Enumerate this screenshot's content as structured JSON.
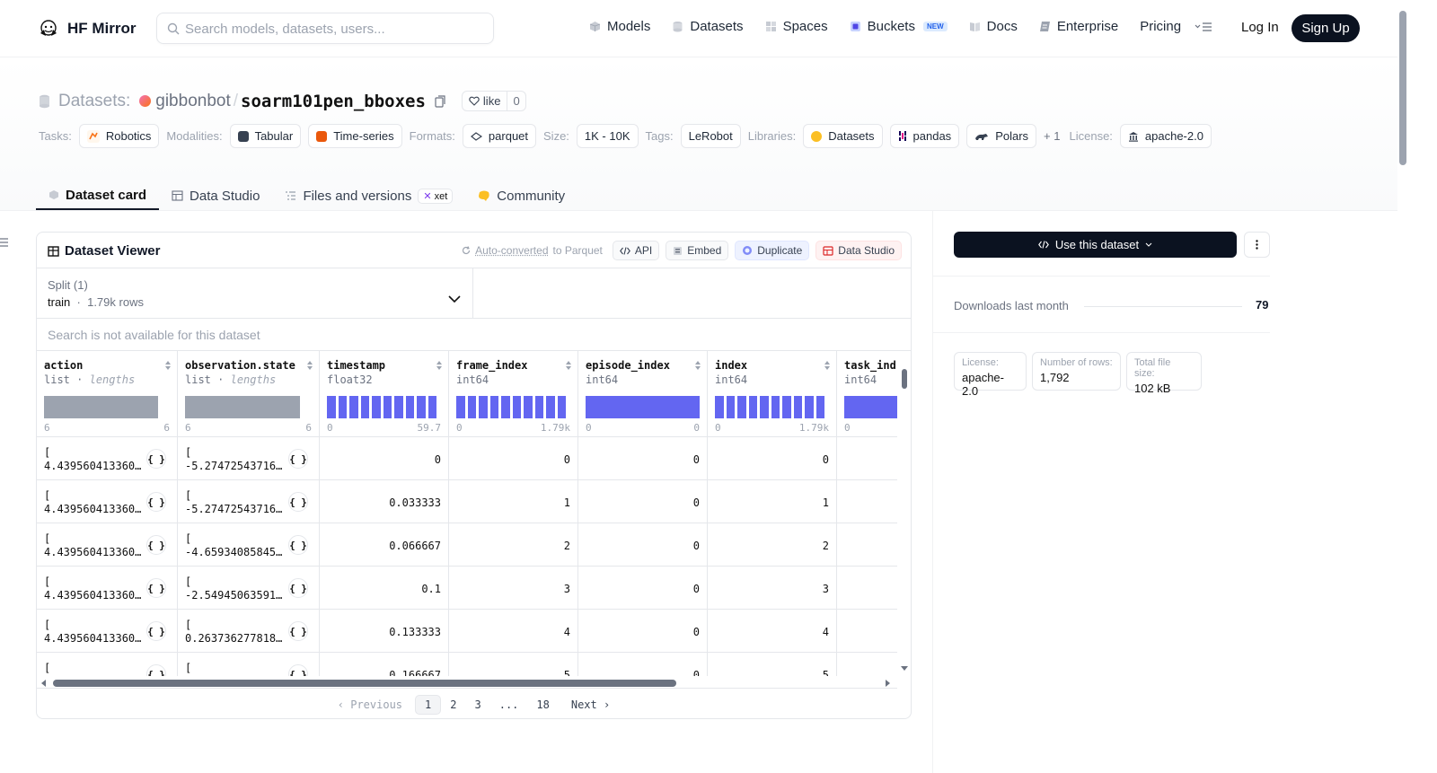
{
  "nav": {
    "brand": "HF Mirror",
    "search_placeholder": "Search models, datasets, users...",
    "links": [
      {
        "label": "Models",
        "icon": "cube-icon"
      },
      {
        "label": "Datasets",
        "icon": "database-icon"
      },
      {
        "label": "Spaces",
        "icon": "grid-icon"
      },
      {
        "label": "Buckets",
        "icon": "bucket-icon",
        "badge": "NEW"
      },
      {
        "label": "Docs",
        "icon": "book-icon"
      },
      {
        "label": "Enterprise",
        "icon": "enterprise-icon"
      },
      {
        "label": "Pricing"
      }
    ],
    "login": "Log In",
    "signup": "Sign Up"
  },
  "header": {
    "section": "Datasets:",
    "owner": "gibbonbot",
    "separator": "/",
    "repo": "soarm101pen_bboxes",
    "like_label": "like",
    "like_count": "0",
    "tags": {
      "tasks_label": "Tasks:",
      "tasks": [
        "Robotics"
      ],
      "modalities_label": "Modalities:",
      "modalities": [
        "Tabular",
        "Time-series"
      ],
      "formats_label": "Formats:",
      "formats": [
        "parquet"
      ],
      "size_label": "Size:",
      "size": "1K - 10K",
      "tags_label": "Tags:",
      "tags": [
        "LeRobot"
      ],
      "libraries_label": "Libraries:",
      "libraries": [
        "Datasets",
        "pandas",
        "Polars"
      ],
      "more": "+ 1",
      "license_label": "License:",
      "license": "apache-2.0"
    }
  },
  "tabs": [
    {
      "label": "Dataset card",
      "active": true
    },
    {
      "label": "Data Studio"
    },
    {
      "label": "Files and versions",
      "badge": "xet"
    },
    {
      "label": "Community"
    }
  ],
  "viewer": {
    "title": "Dataset Viewer",
    "auto_converted": "Auto-converted",
    "to_parquet": "to Parquet",
    "buttons": [
      "API",
      "Embed",
      "Duplicate",
      "Data Studio"
    ],
    "split_label": "Split (1)",
    "split_name": "train",
    "split_rows": "1.79k rows",
    "search_disabled": "Search is not available for this dataset",
    "columns": [
      {
        "name": "action",
        "type": "list",
        "sub": "lengths",
        "min": "6",
        "max": "6"
      },
      {
        "name": "observation.state",
        "type": "list",
        "sub": "lengths",
        "min": "6",
        "max": "6"
      },
      {
        "name": "timestamp",
        "type": "float32",
        "min": "0",
        "max": "59.7"
      },
      {
        "name": "frame_index",
        "type": "int64",
        "min": "0",
        "max": "1.79k"
      },
      {
        "name": "episode_index",
        "type": "int64",
        "min": "0",
        "max": "0"
      },
      {
        "name": "index",
        "type": "int64",
        "min": "0",
        "max": "1.79k"
      },
      {
        "name": "task_ind",
        "type": "int64",
        "min": "0",
        "max": ""
      }
    ],
    "rows": [
      {
        "action": "4.439560413360…",
        "state": "-5.27472543716…",
        "timestamp": "0",
        "frame_index": "0",
        "episode_index": "0",
        "index": "0"
      },
      {
        "action": "4.439560413360…",
        "state": "-5.27472543716…",
        "timestamp": "0.033333",
        "frame_index": "1",
        "episode_index": "0",
        "index": "1"
      },
      {
        "action": "4.439560413360…",
        "state": "-4.65934085845…",
        "timestamp": "0.066667",
        "frame_index": "2",
        "episode_index": "0",
        "index": "2"
      },
      {
        "action": "4.439560413360…",
        "state": "-2.54945063591…",
        "timestamp": "0.1",
        "frame_index": "3",
        "episode_index": "0",
        "index": "3"
      },
      {
        "action": "4.439560413360…",
        "state": "0.263736277818…",
        "timestamp": "0.133333",
        "frame_index": "4",
        "episode_index": "0",
        "index": "4"
      },
      {
        "action": "",
        "state": "",
        "timestamp": "0.166667",
        "frame_index": "5",
        "episode_index": "0",
        "index": "5"
      }
    ],
    "list_open": "[",
    "expand_glyph": "{ }",
    "pager": {
      "previous": "Previous",
      "pages": [
        "1",
        "2",
        "3",
        "...",
        "18"
      ],
      "next": "Next"
    }
  },
  "sidebar": {
    "use_button": "Use this dataset",
    "downloads_label": "Downloads last month",
    "downloads_value": "79",
    "stats": [
      {
        "k": "License:",
        "v": "apache-2.0"
      },
      {
        "k": "Number of rows:",
        "v": "1,792"
      },
      {
        "k": "Total file size:",
        "v": "102 kB"
      }
    ]
  }
}
